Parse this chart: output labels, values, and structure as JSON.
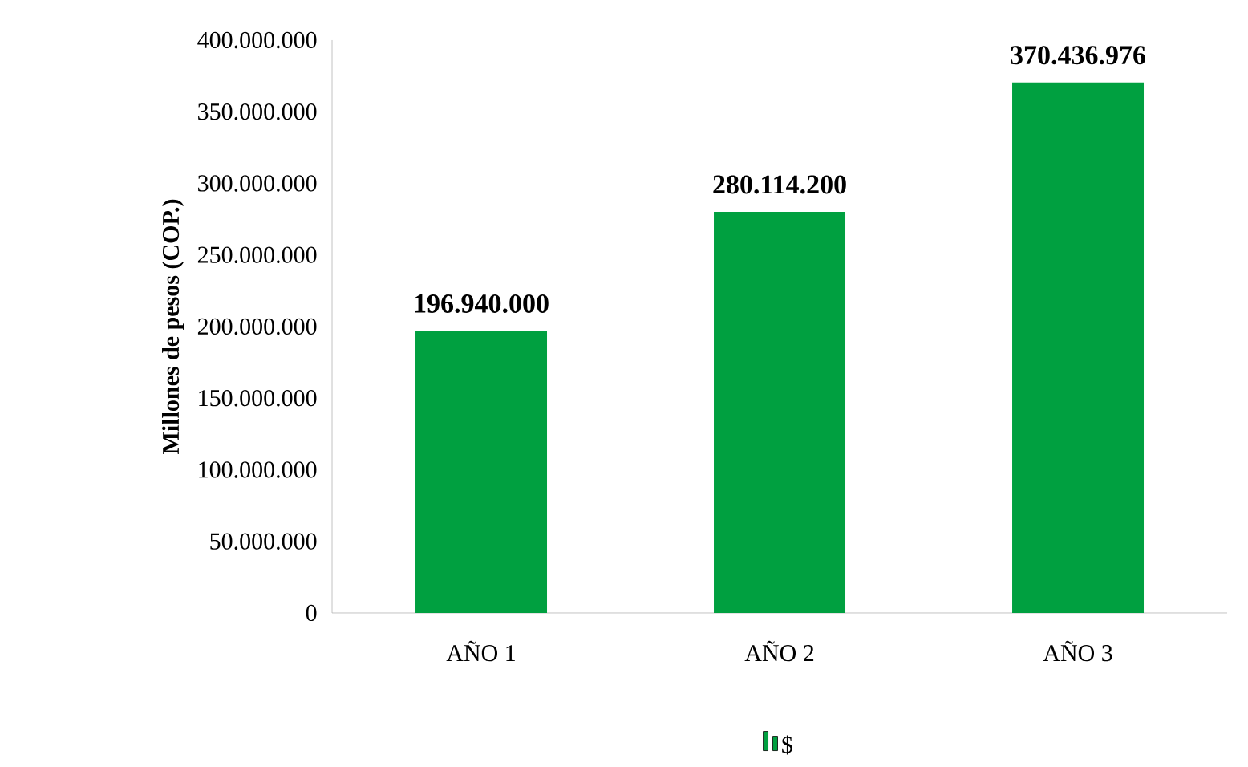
{
  "chart_data": {
    "type": "bar",
    "ylabel": "Millones de pesos (COP.)",
    "categories": [
      "AÑO 1",
      "AÑO 2",
      "AÑO 3"
    ],
    "series": [
      {
        "name": "$",
        "color": "#00a040",
        "values": [
          196940000,
          280114200,
          370436976
        ],
        "value_labels": [
          "196.940.000",
          "280.114.200",
          "370.436.976"
        ]
      }
    ],
    "ylim": [
      0,
      400000000
    ],
    "yticks": [
      {
        "value": 0,
        "label": "0"
      },
      {
        "value": 50000000,
        "label": "50.000.000"
      },
      {
        "value": 100000000,
        "label": "100.000.000"
      },
      {
        "value": 150000000,
        "label": "150.000.000"
      },
      {
        "value": 200000000,
        "label": "200.000.000"
      },
      {
        "value": 250000000,
        "label": "250.000.000"
      },
      {
        "value": 300000000,
        "label": "300.000.000"
      },
      {
        "value": 350000000,
        "label": "350.000.000"
      },
      {
        "value": 400000000,
        "label": "400.000.000"
      }
    ],
    "grid": false,
    "legend": "bottom"
  }
}
